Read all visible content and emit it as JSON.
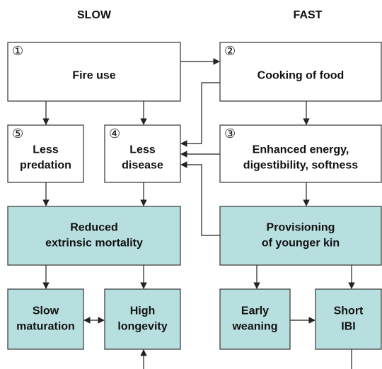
{
  "columns": {
    "slow": "SLOW",
    "fast": "FAST"
  },
  "nodes": [
    {
      "number": "①",
      "lines": [
        "Fire use"
      ]
    },
    {
      "number": "②",
      "lines": [
        "Cooking of food"
      ]
    },
    {
      "number": "③",
      "lines": [
        "Enhanced energy,",
        "digestibility, softness"
      ]
    },
    {
      "number": "④",
      "lines": [
        "Less",
        "disease"
      ]
    },
    {
      "number": "⑤",
      "lines": [
        "Less",
        "predation"
      ]
    },
    {
      "lines": [
        "Reduced",
        "extrinsic mortality"
      ]
    },
    {
      "lines": [
        "Provisioning",
        "of younger kin"
      ]
    },
    {
      "lines": [
        "Slow",
        "maturation"
      ]
    },
    {
      "lines": [
        "High",
        "longevity"
      ]
    },
    {
      "lines": [
        "Early",
        "weaning"
      ]
    },
    {
      "lines": [
        "Short",
        "IBI"
      ]
    }
  ]
}
